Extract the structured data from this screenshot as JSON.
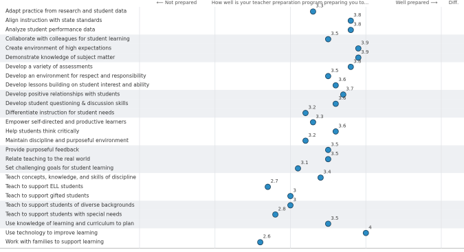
{
  "chart_data": {
    "type": "dot",
    "question": "How well is your teacher preparation program preparing you to...",
    "left_label": "⟵ Not prepared",
    "right_label": "Well prepared ⟶",
    "diff_header": "Diff.",
    "categories": [
      "Adapt practice from research and student data",
      "Align instruction with state standards",
      "Analyze student performance data",
      "Collaborate with colleagues for student learning",
      "Create environment of high expectations",
      "Demonstrate knowledge of subject matter",
      "Develop a variety of assessments",
      "Develop an environment for respect and responsibility",
      "Develop lessons building on student interest and ability",
      "Develop positive relationships with students",
      "Develop student questioning & discussion skills",
      "Differentiate instruction for student needs",
      "Empower self-directed and productive learners",
      "Help students think critically",
      "Maintain discipline and purposeful environment",
      "Provide purposeful feedback",
      "Relate teaching to the real world",
      "Set challenging goals for student learning",
      "Teach concepts, knowledge, and skills of discipline",
      "Teach to support ELL students",
      "Teach to support gifted students",
      "Teach to support students of diverse backgrounds",
      "Teach to support students with special needs",
      "Use knowledge of learning and curriculum to plan",
      "Use technology to improve learning",
      "Work with families to support learning"
    ],
    "values": [
      3.3,
      3.8,
      3.8,
      3.5,
      3.9,
      3.9,
      3.8,
      3.5,
      3.6,
      3.7,
      3.6,
      3.2,
      3.3,
      3.6,
      3.2,
      3.5,
      3.5,
      3.1,
      3.4,
      2.7,
      3.0,
      3.0,
      2.8,
      3.5,
      4.0,
      2.6
    ],
    "color": "#2b8cc4",
    "xlim": [
      1,
      5
    ],
    "xticks": [
      1,
      2,
      3,
      4,
      5
    ],
    "grid": true
  }
}
